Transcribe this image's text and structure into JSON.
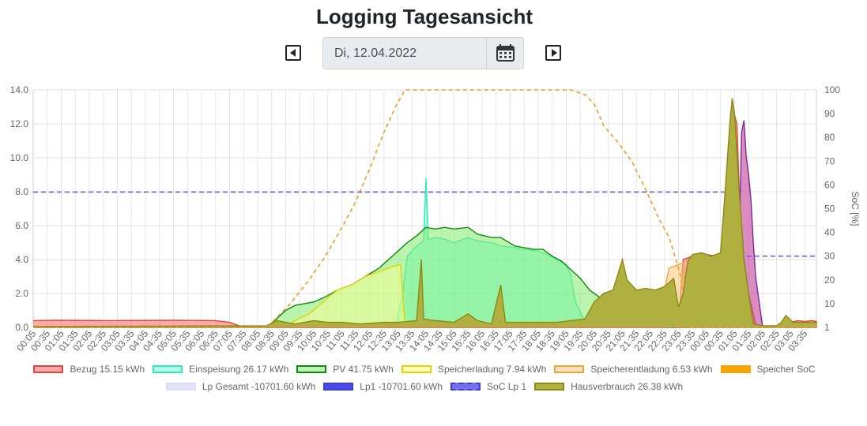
{
  "page": {
    "title": "Logging Tagesansicht",
    "date_value": "Di, 12.04.2022"
  },
  "icons": {
    "prev": "caret-left-square-icon",
    "next": "caret-right-square-icon",
    "calendar": "calendar-icon"
  },
  "chart_data": {
    "type": "area",
    "x_label_every": 6,
    "y_left": {
      "min": 0,
      "max": 14,
      "ticks": [
        "0.0",
        "2.0",
        "4.0",
        "6.0",
        "8.0",
        "10.0",
        "12.0",
        "14.0"
      ],
      "label": ""
    },
    "y_right": {
      "min": 0,
      "max": 100,
      "ticks": [
        "1",
        "10",
        "20",
        "30",
        "40",
        "50",
        "60",
        "70",
        "80",
        "90",
        "100"
      ],
      "label": "SoC [%]"
    },
    "grid": true,
    "legend_position": "bottom",
    "series": [
      {
        "name": "Bezug 15.15 kWh",
        "axis": "left",
        "color": "#e0443a",
        "fill": "rgba(255,100,100,0.55)",
        "points": [
          [
            0,
            0.4
          ],
          [
            10,
            0.42
          ],
          [
            30,
            0.4
          ],
          [
            60,
            0.42
          ],
          [
            78,
            0.4
          ],
          [
            84,
            0.3
          ],
          [
            88,
            0.1
          ],
          [
            90,
            0
          ],
          [
            255,
            0
          ],
          [
            258,
            0.5
          ],
          [
            262,
            0.8
          ],
          [
            264,
            0.3
          ],
          [
            268,
            0
          ],
          [
            276,
            0
          ],
          [
            278,
            4.0
          ],
          [
            282,
            4.2
          ],
          [
            288,
            4.3
          ],
          [
            292,
            4.2
          ],
          [
            294,
            4.3
          ],
          [
            296,
            8.0
          ],
          [
            298,
            12.0
          ],
          [
            299,
            13.5
          ],
          [
            300,
            12.5
          ],
          [
            301,
            12.0
          ],
          [
            302,
            8.0
          ],
          [
            304,
            4.0
          ],
          [
            306,
            2.0
          ],
          [
            309,
            0.2
          ],
          [
            311,
            0
          ],
          [
            318,
            0
          ],
          [
            320,
            0.3
          ],
          [
            322,
            0.7
          ],
          [
            324,
            0.3
          ],
          [
            327,
            0.4
          ],
          [
            330,
            0.35
          ],
          [
            333,
            0.4
          ],
          [
            335,
            0.35
          ],
          [
            335,
            0
          ],
          [
            0,
            0
          ]
        ]
      },
      {
        "name": "Einspeisung 26.17 kWh",
        "axis": "left",
        "color": "#2ee8b6",
        "fill": "rgba(110,255,220,0.55)",
        "points": [
          [
            155,
            0
          ],
          [
            158,
            2.0
          ],
          [
            160,
            4.2
          ],
          [
            164,
            4.8
          ],
          [
            167,
            5.1
          ],
          [
            168,
            8.8
          ],
          [
            169,
            5.2
          ],
          [
            172,
            5.3
          ],
          [
            176,
            5.2
          ],
          [
            180,
            5.0
          ],
          [
            186,
            5.3
          ],
          [
            190,
            5.1
          ],
          [
            196,
            5.0
          ],
          [
            200,
            4.8
          ],
          [
            206,
            4.7
          ],
          [
            210,
            4.6
          ],
          [
            216,
            4.5
          ],
          [
            220,
            4.3
          ],
          [
            224,
            4.0
          ],
          [
            228,
            3.7
          ],
          [
            230,
            3.0
          ],
          [
            232,
            1.5
          ],
          [
            235,
            0.6
          ],
          [
            240,
            0.1
          ],
          [
            242,
            0
          ]
        ]
      },
      {
        "name": "PV 41.75 kWh",
        "axis": "left",
        "color": "#118811",
        "fill": "rgba(130,235,110,0.55)",
        "points": [
          [
            100,
            0
          ],
          [
            104,
            0.5
          ],
          [
            108,
            1.0
          ],
          [
            112,
            1.3
          ],
          [
            116,
            1.4
          ],
          [
            120,
            1.5
          ],
          [
            125,
            1.8
          ],
          [
            130,
            2.2
          ],
          [
            136,
            2.5
          ],
          [
            142,
            3.0
          ],
          [
            148,
            3.5
          ],
          [
            152,
            4.0
          ],
          [
            156,
            4.5
          ],
          [
            160,
            5.0
          ],
          [
            164,
            5.4
          ],
          [
            168,
            5.9
          ],
          [
            172,
            5.8
          ],
          [
            176,
            5.9
          ],
          [
            180,
            5.8
          ],
          [
            186,
            5.9
          ],
          [
            190,
            5.5
          ],
          [
            196,
            5.3
          ],
          [
            200,
            5.3
          ],
          [
            206,
            4.8
          ],
          [
            210,
            4.7
          ],
          [
            214,
            4.6
          ],
          [
            218,
            4.6
          ],
          [
            222,
            4.2
          ],
          [
            226,
            3.9
          ],
          [
            230,
            3.4
          ],
          [
            234,
            2.9
          ],
          [
            238,
            2.2
          ],
          [
            242,
            1.8
          ],
          [
            246,
            1.4
          ],
          [
            250,
            1.2
          ],
          [
            254,
            1.0
          ],
          [
            258,
            0.7
          ],
          [
            262,
            0.4
          ],
          [
            266,
            0.2
          ],
          [
            270,
            0.05
          ],
          [
            274,
            0
          ]
        ]
      },
      {
        "name": "Speicherladung 7.94 kWh",
        "axis": "left",
        "color": "#e6d200",
        "fill": "rgba(255,255,140,0.45)",
        "points": [
          [
            108,
            0
          ],
          [
            112,
            0.4
          ],
          [
            118,
            0.8
          ],
          [
            124,
            1.5
          ],
          [
            130,
            2.2
          ],
          [
            136,
            2.5
          ],
          [
            142,
            3.0
          ],
          [
            148,
            3.3
          ],
          [
            154,
            3.6
          ],
          [
            157,
            3.7
          ],
          [
            158,
            2.0
          ],
          [
            159,
            0.2
          ],
          [
            160,
            0
          ]
        ]
      },
      {
        "name": "Speicherentladung 6.53 kWh",
        "axis": "left",
        "color": "#e8a840",
        "fill": "rgba(255,200,120,0.55)",
        "points": [
          [
            232,
            0
          ],
          [
            240,
            0.4
          ],
          [
            246,
            1.0
          ],
          [
            252,
            1.3
          ],
          [
            258,
            1.5
          ],
          [
            264,
            1.8
          ],
          [
            270,
            2.2
          ],
          [
            272,
            3.5
          ],
          [
            276,
            3.7
          ],
          [
            278,
            3.8
          ],
          [
            280,
            0.5
          ],
          [
            282,
            0
          ]
        ]
      },
      {
        "name": "Speicher SoC",
        "axis": "right",
        "color": "#e8a020",
        "fill": "#f7a300",
        "dash": "5,4",
        "points": [
          [
            0,
            0
          ],
          [
            100,
            0
          ],
          [
            110,
            10
          ],
          [
            118,
            20
          ],
          [
            125,
            30
          ],
          [
            132,
            42
          ],
          [
            138,
            53
          ],
          [
            144,
            67
          ],
          [
            150,
            82
          ],
          [
            155,
            93
          ],
          [
            159,
            100
          ],
          [
            168,
            100
          ],
          [
            200,
            100
          ],
          [
            230,
            100
          ],
          [
            236,
            98
          ],
          [
            240,
            94
          ],
          [
            244,
            85
          ],
          [
            250,
            78
          ],
          [
            256,
            70
          ],
          [
            262,
            58
          ],
          [
            268,
            45
          ],
          [
            272,
            38
          ],
          [
            276,
            25
          ],
          [
            279,
            12
          ],
          [
            280,
            0
          ],
          [
            335,
            0
          ]
        ]
      },
      {
        "name": "Lp Gesamt -10701.60 kWh",
        "axis": "left",
        "color": "#c8c8f0",
        "fill": "rgba(220,220,250,0.6)",
        "points": []
      },
      {
        "name": "Lp1 -10701.60 kWh",
        "axis": "left",
        "color": "#7a2a9a",
        "fill": "rgba(200,80,160,0.65)",
        "points": [
          [
            300,
            0
          ],
          [
            302,
            5.0
          ],
          [
            303,
            11.5
          ],
          [
            304,
            12.2
          ],
          [
            305,
            10.0
          ],
          [
            306,
            9.0
          ],
          [
            307,
            7.5
          ],
          [
            308,
            5.0
          ],
          [
            309,
            3.0
          ],
          [
            310,
            2.0
          ],
          [
            311,
            1.0
          ],
          [
            312,
            0
          ]
        ]
      },
      {
        "name": "SoC Lp 1",
        "axis": "right",
        "color": "#7a5ad0",
        "fill": "rgba(120,120,240,0.6)",
        "dash": "6,4",
        "border": "#3e3ed8",
        "points": [
          [
            0,
            57
          ],
          [
            299,
            57
          ],
          [
            300,
            57
          ],
          [
            301,
            52
          ],
          [
            302,
            26
          ],
          [
            303,
            26
          ],
          [
            304,
            30
          ],
          [
            335,
            30
          ]
        ]
      },
      {
        "name": "Hausverbrauch 26.38 kWh",
        "axis": "left",
        "color": "#8a8a10",
        "fill": "#b0b040",
        "points": [
          [
            0,
            0.05
          ],
          [
            100,
            0.1
          ],
          [
            104,
            0.4
          ],
          [
            108,
            0.3
          ],
          [
            112,
            0.2
          ],
          [
            116,
            0.3
          ],
          [
            120,
            0.4
          ],
          [
            126,
            0.3
          ],
          [
            132,
            0.3
          ],
          [
            140,
            0.2
          ],
          [
            150,
            0.3
          ],
          [
            156,
            0.3
          ],
          [
            164,
            0.4
          ],
          [
            166,
            4.0
          ],
          [
            167,
            0.5
          ],
          [
            172,
            0.4
          ],
          [
            180,
            0.3
          ],
          [
            186,
            0.8
          ],
          [
            190,
            0.4
          ],
          [
            196,
            0.2
          ],
          [
            200,
            2.5
          ],
          [
            202,
            0.3
          ],
          [
            210,
            0.3
          ],
          [
            216,
            0.3
          ],
          [
            224,
            0.3
          ],
          [
            230,
            0.4
          ],
          [
            236,
            0.5
          ],
          [
            240,
            1.5
          ],
          [
            244,
            2.0
          ],
          [
            248,
            2.2
          ],
          [
            252,
            4.0
          ],
          [
            254,
            2.8
          ],
          [
            258,
            2.2
          ],
          [
            262,
            2.3
          ],
          [
            266,
            2.2
          ],
          [
            270,
            2.4
          ],
          [
            274,
            2.9
          ],
          [
            276,
            1.2
          ],
          [
            278,
            2.0
          ],
          [
            280,
            3.9
          ],
          [
            282,
            4.3
          ],
          [
            286,
            4.4
          ],
          [
            290,
            4.2
          ],
          [
            292,
            4.3
          ],
          [
            294,
            4.4
          ],
          [
            296,
            8.0
          ],
          [
            298,
            12.0
          ],
          [
            299,
            13.5
          ],
          [
            300,
            12.5
          ],
          [
            302,
            8.0
          ],
          [
            304,
            4.0
          ],
          [
            306,
            2.0
          ],
          [
            308,
            0.2
          ],
          [
            312,
            0.1
          ],
          [
            318,
            0.1
          ],
          [
            320,
            0.3
          ],
          [
            322,
            0.7
          ],
          [
            325,
            0.3
          ],
          [
            335,
            0.3
          ]
        ]
      }
    ]
  },
  "legend": {
    "row1": [
      {
        "label": "Bezug 15.15 kWh",
        "border": "#e0443a",
        "fill": "rgba(255,100,100,0.55)"
      },
      {
        "label": "Einspeisung 26.17 kWh",
        "border": "#2ee8b6",
        "fill": "rgba(110,255,220,0.55)"
      },
      {
        "label": "PV 41.75 kWh",
        "border": "#118811",
        "fill": "rgba(130,235,110,0.55)"
      },
      {
        "label": "Speicherladung 7.94 kWh",
        "border": "#e6d200",
        "fill": "rgba(255,255,140,0.55)"
      },
      {
        "label": "Speicherentladung 6.53 kWh",
        "border": "#e8a840",
        "fill": "rgba(255,200,120,0.55)"
      },
      {
        "label": "Speicher SoC",
        "border": "#f7a300",
        "fill": "#f7a300"
      }
    ],
    "row2": [
      {
        "label": "Lp Gesamt -10701.60 kWh",
        "border": "#dcdcf5",
        "fill": "rgba(220,220,250,0.8)"
      },
      {
        "label": "Lp1 -10701.60 kWh",
        "border": "#3e3ed8",
        "fill": "#4a4aee"
      },
      {
        "label": "SoC Lp 1",
        "border": "#3e3ed8",
        "fill": "#7070f0",
        "dashed": true
      },
      {
        "label": "Hausverbrauch 26.38 kWh",
        "border": "#8a8a10",
        "fill": "#b0b040"
      }
    ]
  }
}
